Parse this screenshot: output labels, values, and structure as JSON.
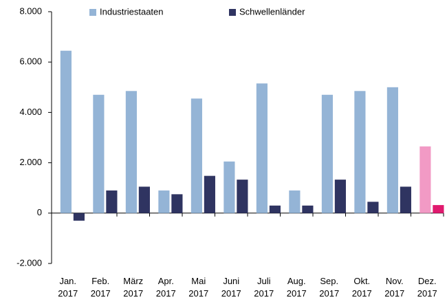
{
  "chart_data": {
    "type": "bar",
    "categories": [
      "Jan. 2017",
      "Feb. 2017",
      "März 2017",
      "Apr. 2017",
      "Mai 2017",
      "Juni 2017",
      "Juli 2017",
      "Aug. 2017",
      "Sep. 2017",
      "Okt. 2017",
      "Nov. 2017",
      "Dez. 2017"
    ],
    "series": [
      {
        "name": "Industriestaaten",
        "color": "#94b4d6",
        "colors": [
          "#94b4d6",
          "#94b4d6",
          "#94b4d6",
          "#94b4d6",
          "#94b4d6",
          "#94b4d6",
          "#94b4d6",
          "#94b4d6",
          "#94b4d6",
          "#94b4d6",
          "#94b4d6",
          "#f29ac5"
        ],
        "values": [
          6450,
          4700,
          4850,
          900,
          4550,
          2050,
          5150,
          900,
          4700,
          4850,
          5000,
          2650
        ]
      },
      {
        "name": "Schwellenländer",
        "color": "#2f3461",
        "colors": [
          "#2f3461",
          "#2f3461",
          "#2f3461",
          "#2f3461",
          "#2f3461",
          "#2f3461",
          "#2f3461",
          "#2f3461",
          "#2f3461",
          "#2f3461",
          "#2f3461",
          "#e0196e"
        ],
        "values": [
          -300,
          900,
          1050,
          750,
          1480,
          1330,
          300,
          300,
          1330,
          450,
          1050,
          320
        ]
      }
    ],
    "ylim": [
      -2000,
      8000
    ],
    "yticks": [
      {
        "value": -2000,
        "label": "-2.000"
      },
      0,
      {
        "value": 2000,
        "label": "2.000"
      },
      {
        "value": 4000,
        "label": "4.000"
      },
      {
        "value": 6000,
        "label": "6.000"
      },
      {
        "value": 8000,
        "label": "8.000"
      }
    ],
    "grid": false,
    "legend": "top"
  }
}
